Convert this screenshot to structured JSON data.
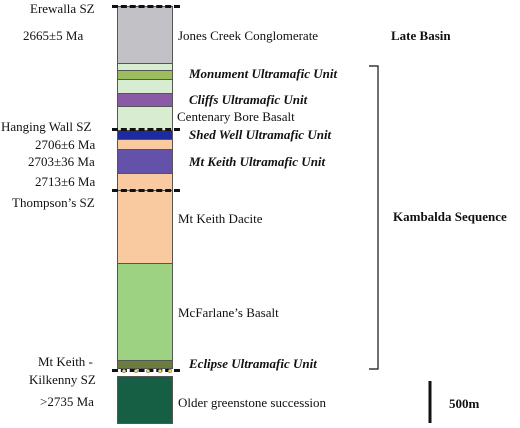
{
  "units": [
    {
      "key": "jones_creek",
      "name": "Jones Creek Conglomerate",
      "age": "2665±5 Ma",
      "color": "#c2c2c6"
    },
    {
      "key": "monument",
      "name": "Monument Ultramafic Unit",
      "color": "#9cbd5d"
    },
    {
      "key": "cliffs",
      "name": "Cliffs Ultramafic Unit",
      "color": "#8b5aa6"
    },
    {
      "key": "centenary",
      "name": "Centenary Bore Basalt",
      "color": "#d7ecd0"
    },
    {
      "key": "shed_well",
      "name": "Shed Well Ultramafic Unit",
      "color": "#1d2aa0"
    },
    {
      "key": "mt_keith_um",
      "name": "Mt Keith Ultramafic Unit",
      "color": "#6452aa"
    },
    {
      "key": "mt_keith_dacite",
      "name": "Mt Keith Dacite",
      "color": "#f9c9a0"
    },
    {
      "key": "mcfarlane",
      "name": "McFarlane's Basalt",
      "color": "#9dd282"
    },
    {
      "key": "eclipse",
      "name": "Eclipse Ultramafic Unit",
      "color": "#6a7d3c"
    },
    {
      "key": "older",
      "name": "Older greenstone succession",
      "color": "#165f45"
    }
  ],
  "labels": {
    "jones_creek": "Jones Creek Conglomerate",
    "monument": "Monument Ultramafic Unit",
    "cliffs": "Cliffs Ultramafic Unit",
    "centenary": "Centenary Bore Basalt",
    "shed_well": "Shed Well Ultramafic Unit",
    "mt_keith_um": "Mt Keith Ultramafic Unit",
    "mt_keith_dacite": "Mt Keith Dacite",
    "mcfarlane": "McFarlane’s Basalt",
    "eclipse": "Eclipse Ultramafic Unit",
    "older": "Older greenstone succession"
  },
  "ages": {
    "a2665": "2665±5 Ma",
    "a2706": "2706±6 Ma",
    "a2703": "2703±36 Ma",
    "a2713": "2713±6 Ma",
    "a2735": ">2735 Ma"
  },
  "shear_zones": {
    "erewalla": "Erewalla SZ",
    "hanging_wall": "Hanging Wall SZ",
    "thompsons": "Thompson’s SZ",
    "mtkeith_kilkenny_1": "Mt Keith -",
    "mtkeith_kilkenny_2": "Kilkenny SZ"
  },
  "groups": {
    "late_basin": "Late Basin",
    "kambalda": "Kambalda Sequence"
  },
  "scale": {
    "label": "500m"
  }
}
